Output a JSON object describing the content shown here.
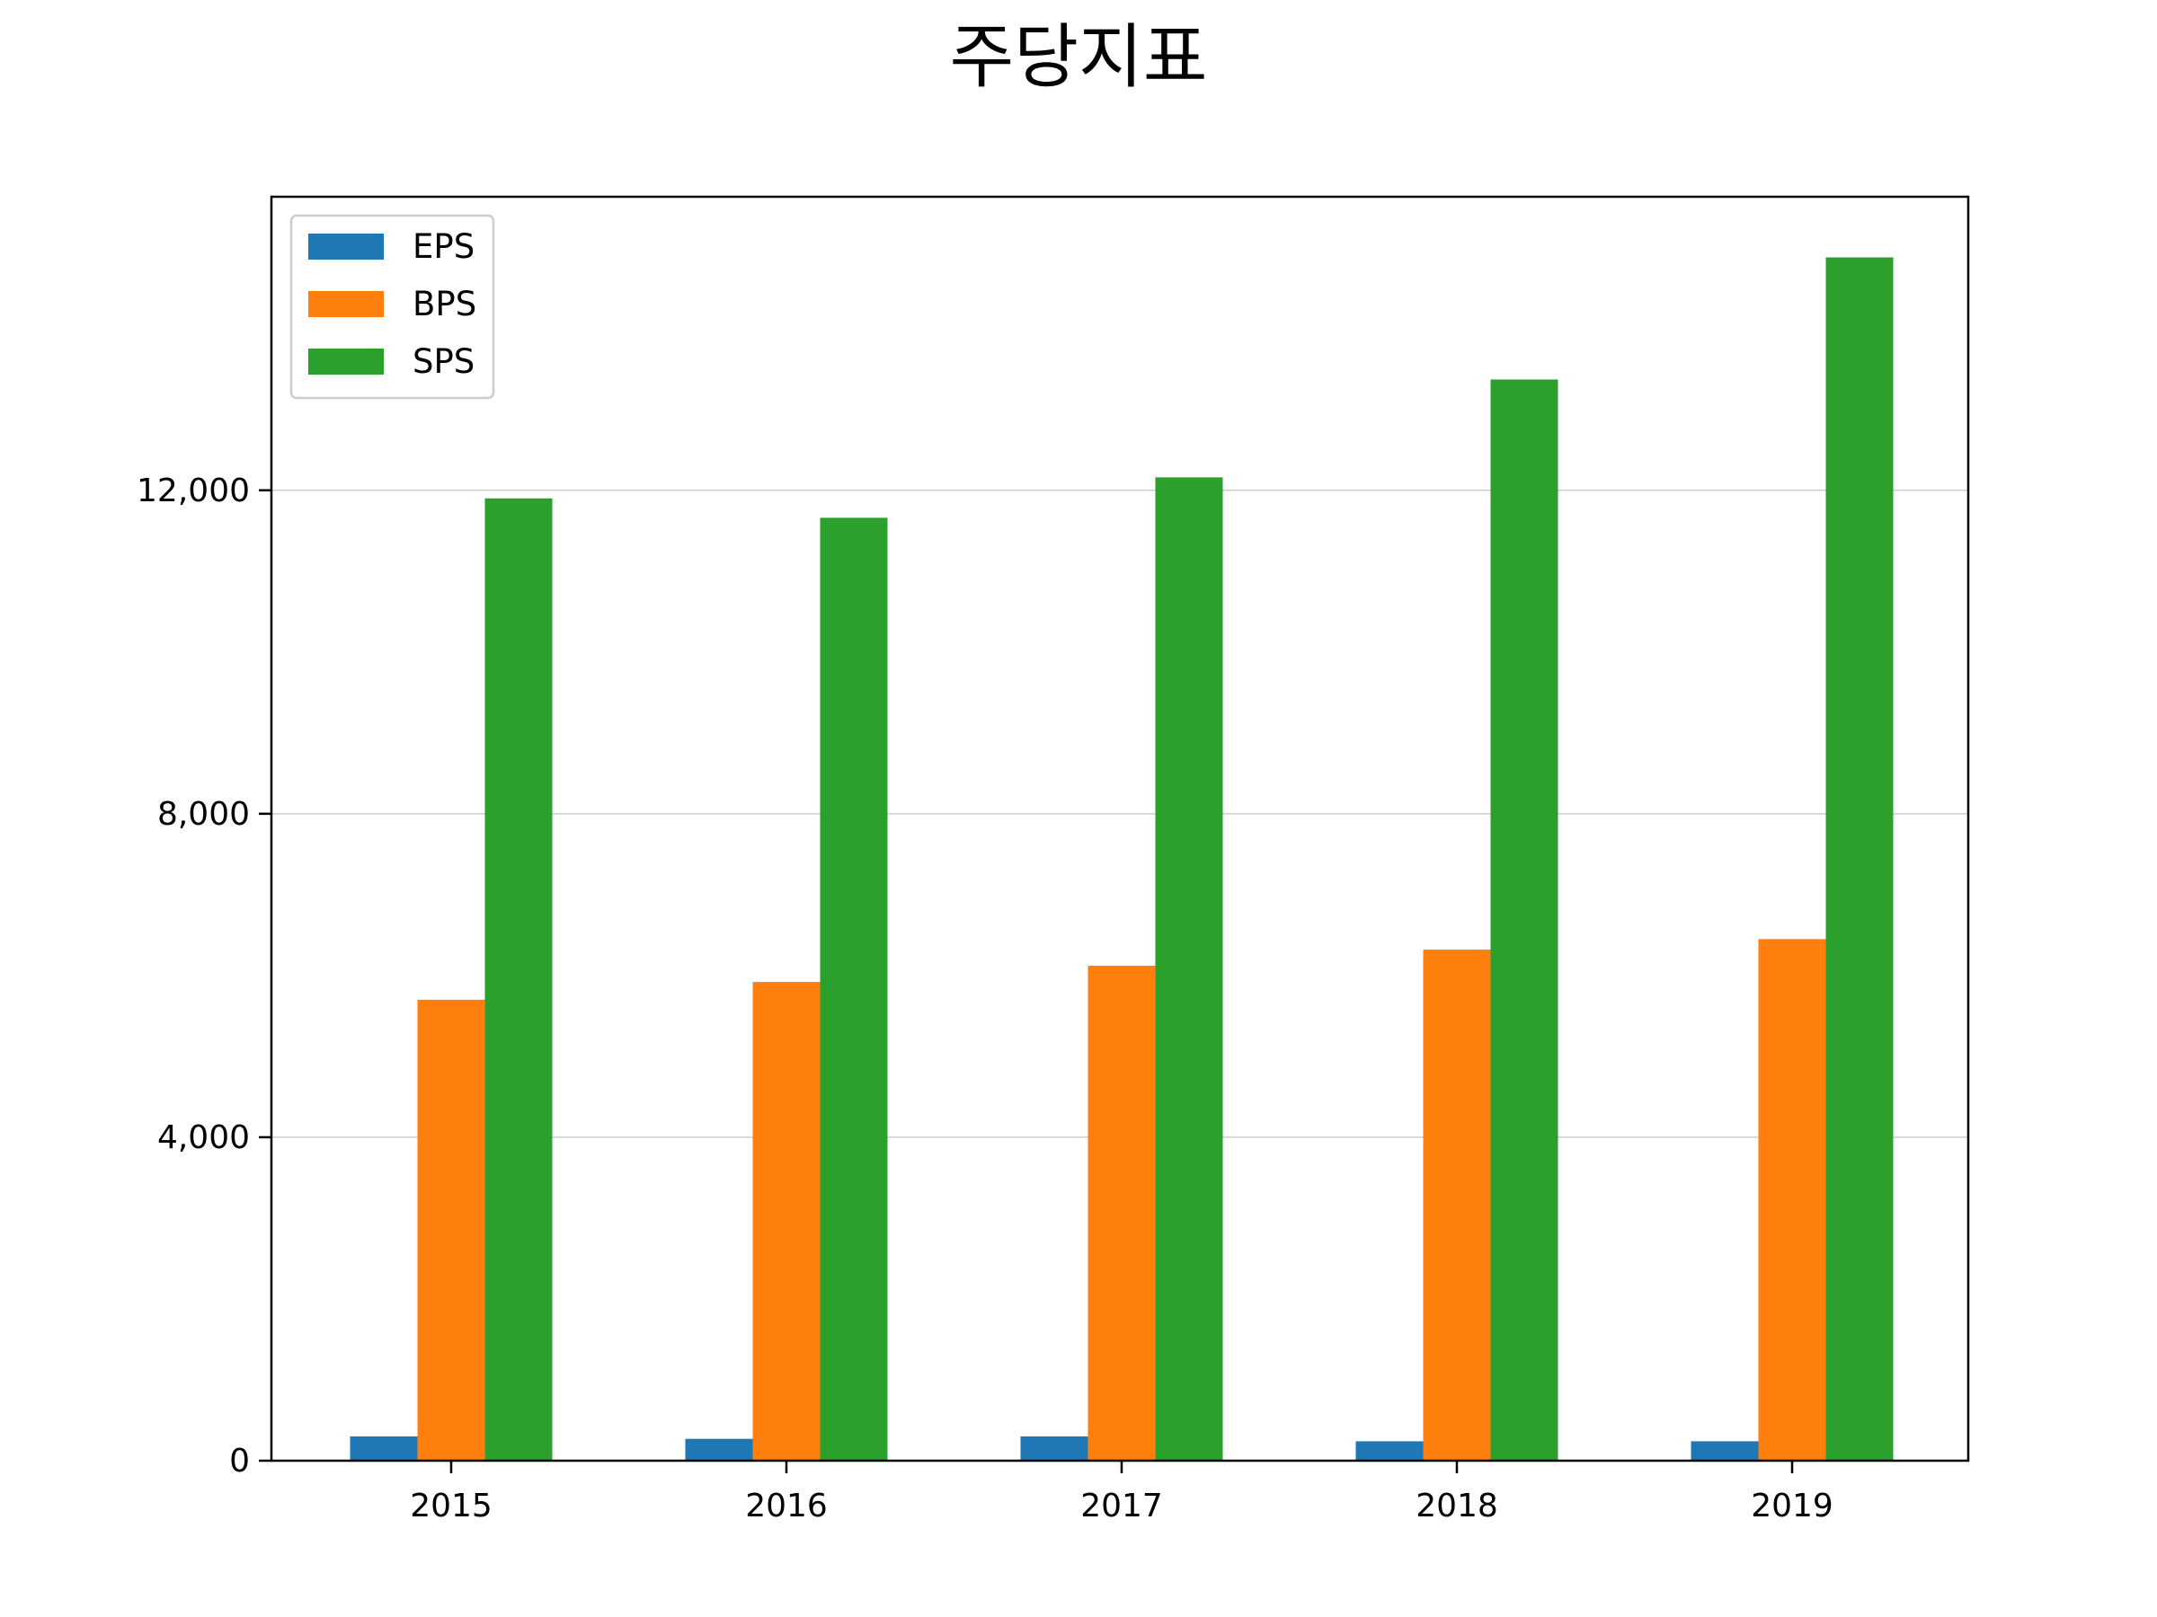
{
  "chart_data": {
    "type": "bar",
    "title": "주당지표",
    "xlabel": "",
    "ylabel": "",
    "categories": [
      "2015",
      "2016",
      "2017",
      "2018",
      "2019"
    ],
    "series": [
      {
        "name": "EPS",
        "color": "#1f77b4",
        "values": [
          300,
          270,
          300,
          240,
          240
        ]
      },
      {
        "name": "BPS",
        "color": "#ff7f0e",
        "values": [
          5700,
          5920,
          6120,
          6320,
          6450
        ]
      },
      {
        "name": "SPS",
        "color": "#2ca02c",
        "values": [
          11900,
          11660,
          12160,
          13370,
          14880
        ]
      }
    ],
    "ylim": [
      0,
      15630
    ],
    "yticks": [
      0,
      4000,
      8000,
      12000
    ],
    "ytick_labels": [
      "0",
      "4,000",
      "8,000",
      "12,000"
    ],
    "grid": "y",
    "legend_position": "top-left"
  }
}
